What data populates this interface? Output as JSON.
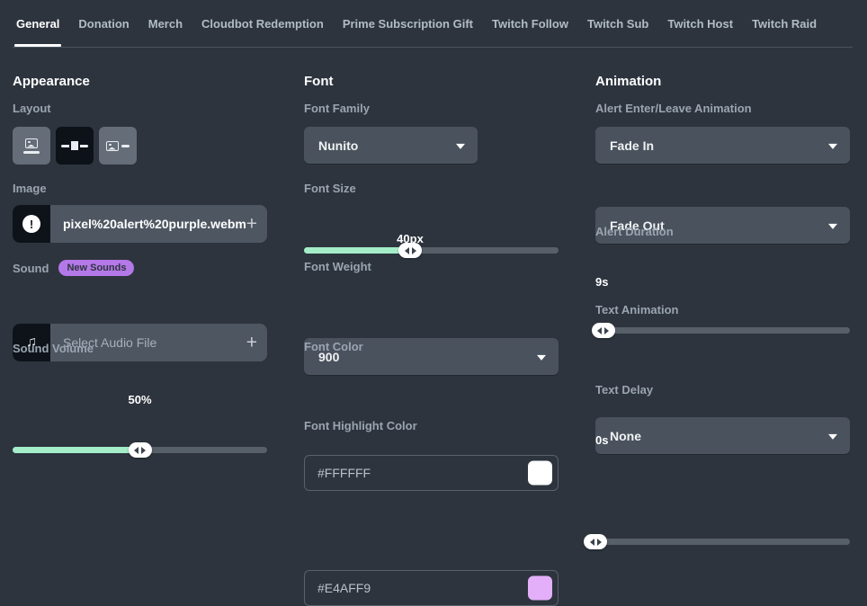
{
  "tabs": [
    {
      "label": "General",
      "active": true
    },
    {
      "label": "Donation",
      "active": false
    },
    {
      "label": "Merch",
      "active": false
    },
    {
      "label": "Cloudbot Redemption",
      "active": false
    },
    {
      "label": "Prime Subscription Gift",
      "active": false
    },
    {
      "label": "Twitch Follow",
      "active": false
    },
    {
      "label": "Twitch Sub",
      "active": false
    },
    {
      "label": "Twitch Host",
      "active": false
    },
    {
      "label": "Twitch Raid",
      "active": false
    }
  ],
  "appearance": {
    "heading": "Appearance",
    "layout_label": "Layout",
    "image_label": "Image",
    "image_value": "pixel%20alert%20purple.webm",
    "image_add_label": "+",
    "sound_label": "Sound",
    "sound_badge": "New Sounds",
    "sound_placeholder": "Select Audio File",
    "sound_add_label": "+",
    "volume_label": "Sound Volume",
    "volume_value": "50%",
    "volume_percent": 50
  },
  "font": {
    "heading": "Font",
    "family_label": "Font Family",
    "family_value": "Nunito",
    "size_label": "Font Size",
    "size_value": "40px",
    "size_percent": 41.7,
    "weight_label": "Font Weight",
    "weight_value": "900",
    "color_label": "Font Color",
    "color_value": "#FFFFFF",
    "highlight_label": "Font Highlight Color",
    "highlight_value": "#E4AFF9"
  },
  "animation": {
    "heading": "Animation",
    "enter_leave_label": "Alert Enter/Leave Animation",
    "enter_value": "Fade In",
    "leave_value": "Fade Out",
    "duration_label": "Alert Duration",
    "duration_value": "9s",
    "duration_percent": 3,
    "text_animation_label": "Text Animation",
    "text_animation_value": "None",
    "text_delay_label": "Text Delay",
    "text_delay_value": "0s",
    "text_delay_percent": 0
  },
  "icons": {
    "layout_image_top": "layout-image-above-text-icon",
    "layout_image_overlay": "layout-image-over-text-icon",
    "layout_image_side": "layout-image-beside-text-icon",
    "exclamation": "exclamation-icon",
    "music_note": "music-note-icon",
    "plus": "plus-icon",
    "caret_down": "chevron-down-icon"
  },
  "colors": {
    "background": "#2d343e",
    "accent_green": "#a4edc8",
    "badge_purple": "#b478e8",
    "dropdown_gray": "#4a525d",
    "font_color_swatch": "#FFFFFF",
    "font_highlight_swatch": "#E4AFF9"
  }
}
